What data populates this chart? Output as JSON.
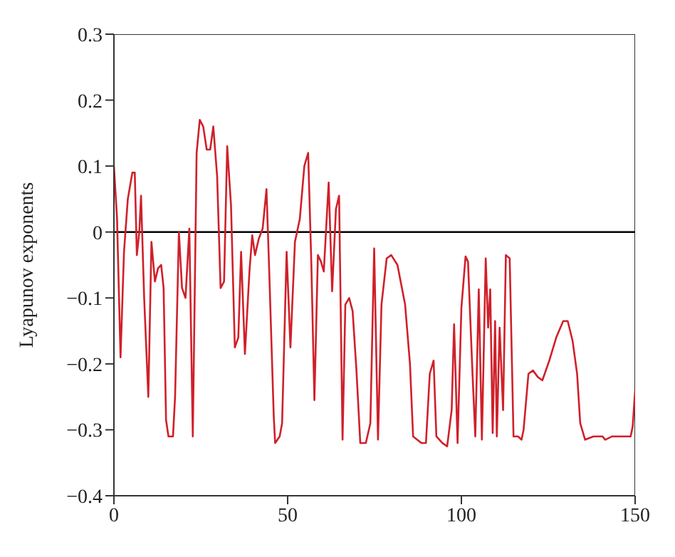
{
  "chart_data": {
    "type": "line",
    "ylabel": "Lyapunov exponents",
    "xlim": [
      0,
      150
    ],
    "xticks": [
      0,
      50,
      100,
      150
    ],
    "ylim": [
      -0.4,
      0.3
    ],
    "yticks": [
      -0.4,
      -0.3,
      -0.2,
      -0.1,
      {
        "value": 0,
        "label": "0"
      },
      0.1,
      0.2,
      0.3
    ],
    "grid": false,
    "legend": false,
    "marker": "none",
    "line_style": "solid",
    "ref_lines": [
      {
        "axis": "y",
        "value": 0,
        "label": null,
        "color": "#000000"
      }
    ],
    "series": [
      {
        "color": "#d0202a",
        "x": [
          0,
          0.9,
          1.9,
          2.9,
          4,
          5.3,
          6,
          6.6,
          7.3,
          7.8,
          8.7,
          9.9,
          10.8,
          11.8,
          12.7,
          13.6,
          14.3,
          15,
          15.7,
          17,
          17.6,
          18.7,
          19.6,
          20.6,
          21.7,
          22.7,
          23.8,
          24.7,
          25.7,
          26.7,
          27.7,
          28.6,
          29.7,
          30.7,
          31.7,
          32.6,
          33.7,
          34.8,
          35.8,
          36.6,
          37.7,
          39,
          39.8,
          40.6,
          41.7,
          42.8,
          43.9,
          44.7,
          46,
          46.4,
          47.7,
          48.4,
          49.7,
          50.8,
          52.1,
          53.5,
          54.8,
          55.9,
          56.8,
          57.7,
          58.7,
          59.6,
          60.4,
          61.8,
          62.8,
          63.9,
          64.8,
          65.8,
          66.6,
          67.7,
          68.7,
          69.8,
          70.9,
          72.5,
          73.8,
          74.9,
          76,
          77,
          78.5,
          79.8,
          81.6,
          83.8,
          85.2,
          86.1,
          88.5,
          89.8,
          90.9,
          92,
          92.8,
          94.5,
          95.9,
          97.2,
          97.9,
          98.9,
          100,
          101.2,
          101.9,
          103.2,
          104,
          105,
          105.9,
          107,
          107.7,
          108.3,
          109,
          109.7,
          110.2,
          111,
          112,
          112.8,
          113.9,
          115,
          116.3,
          117.3,
          117.9,
          119.3,
          120.6,
          122,
          123.3,
          125.3,
          127.3,
          129.3,
          130.6,
          132,
          133.3,
          134.2,
          135.6,
          138,
          140.6,
          141.4,
          143.4,
          146,
          148.7,
          149.3,
          150
        ],
        "values": [
          0.1,
          0.02,
          -0.19,
          -0.03,
          0.05,
          0.09,
          0.09,
          -0.035,
          0,
          0.055,
          -0.1,
          -0.25,
          -0.015,
          -0.075,
          -0.055,
          -0.05,
          -0.085,
          -0.285,
          -0.31,
          -0.31,
          -0.25,
          0,
          -0.085,
          -0.1,
          0.005,
          -0.31,
          0.12,
          0.17,
          0.16,
          0.125,
          0.125,
          0.16,
          0.085,
          -0.085,
          -0.075,
          0.13,
          0.04,
          -0.175,
          -0.16,
          -0.03,
          -0.185,
          -0.06,
          -0.005,
          -0.035,
          -0.01,
          0.005,
          0.065,
          -0.06,
          -0.28,
          -0.32,
          -0.31,
          -0.29,
          -0.03,
          -0.175,
          -0.015,
          0.02,
          0.1,
          0.12,
          -0.045,
          -0.255,
          -0.035,
          -0.045,
          -0.06,
          0.075,
          -0.09,
          0.035,
          0.055,
          -0.315,
          -0.11,
          -0.1,
          -0.12,
          -0.21,
          -0.32,
          -0.32,
          -0.29,
          -0.025,
          -0.315,
          -0.11,
          -0.04,
          -0.035,
          -0.05,
          -0.11,
          -0.2,
          -0.31,
          -0.32,
          -0.32,
          -0.215,
          -0.195,
          -0.31,
          -0.32,
          -0.325,
          -0.27,
          -0.14,
          -0.32,
          -0.115,
          -0.037,
          -0.045,
          -0.215,
          -0.31,
          -0.087,
          -0.315,
          -0.04,
          -0.145,
          -0.087,
          -0.305,
          -0.135,
          -0.31,
          -0.145,
          -0.27,
          -0.035,
          -0.04,
          -0.31,
          -0.31,
          -0.315,
          -0.3,
          -0.215,
          -0.21,
          -0.22,
          -0.225,
          -0.195,
          -0.16,
          -0.135,
          -0.135,
          -0.165,
          -0.215,
          -0.29,
          -0.315,
          -0.31,
          -0.31,
          -0.315,
          -0.31,
          -0.31,
          -0.31,
          -0.295,
          -0.24
        ]
      }
    ]
  }
}
